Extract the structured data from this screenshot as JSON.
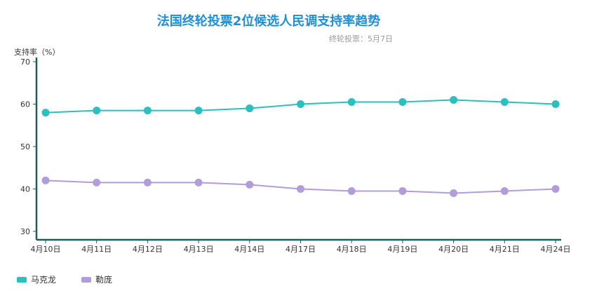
{
  "chart_data": {
    "type": "line",
    "title": "法国终轮投票2位候选人民调支持率趋势",
    "subtitle": "终轮投票：5月7日",
    "ylabel": "支持率（%）",
    "xlabel": "",
    "ylim": [
      28,
      71
    ],
    "yticks": [
      30,
      40,
      50,
      60,
      70
    ],
    "categories": [
      "4月10日",
      "4月11日",
      "4月12日",
      "4月13日",
      "4月14日",
      "4月17日",
      "4月18日",
      "4月19日",
      "4月20日",
      "4月21日",
      "4月24日"
    ],
    "series": [
      {
        "name": "马克龙",
        "color": "#2bbfbf",
        "values": [
          58,
          58.5,
          58.5,
          58.5,
          59,
          60,
          60.5,
          60.5,
          61,
          60.5,
          60
        ]
      },
      {
        "name": "勒庞",
        "color": "#b19cdc",
        "values": [
          42,
          41.5,
          41.5,
          41.5,
          41,
          40,
          39.5,
          39.5,
          39,
          39.5,
          40
        ]
      }
    ],
    "grid": false,
    "legend_position": "bottom-left",
    "axis_color": "#1a5e5e"
  }
}
